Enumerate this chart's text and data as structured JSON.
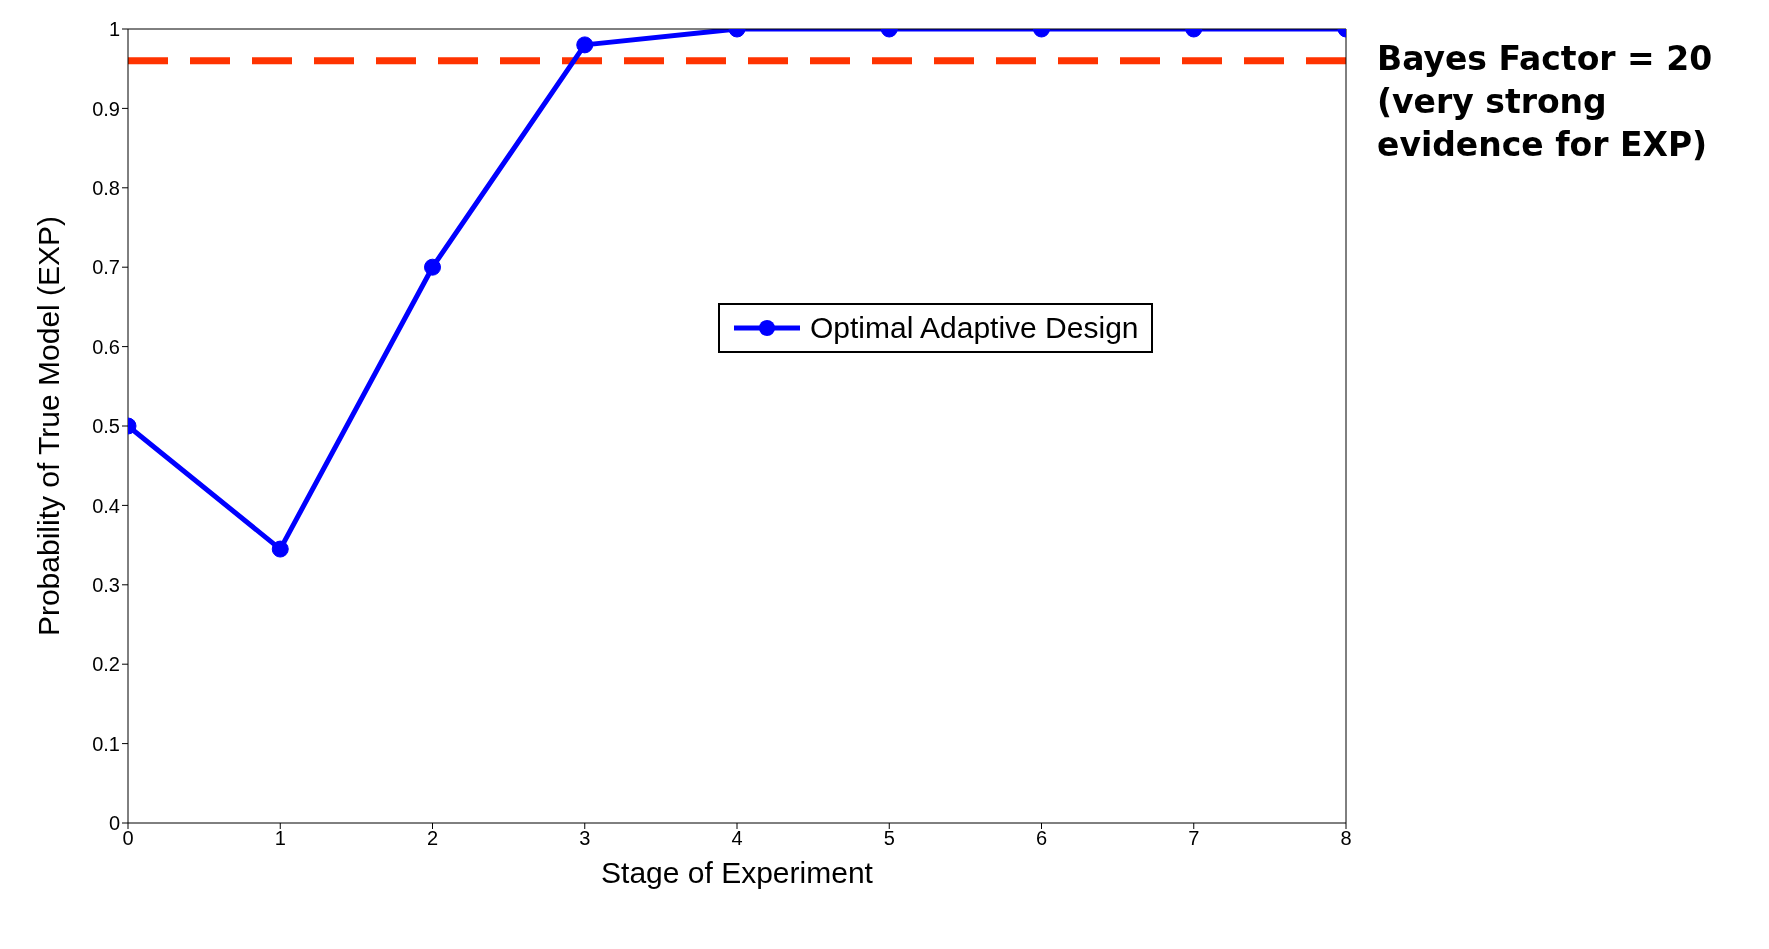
{
  "chart_data": {
    "type": "line",
    "xlabel": "Stage of Experiment",
    "ylabel": "Probability of True Model (EXP)",
    "x": [
      0,
      1,
      2,
      3,
      4,
      5,
      6,
      7,
      8
    ],
    "series": [
      {
        "name": "Optimal Adaptive Design",
        "color": "#0000ff",
        "values": [
          0.5,
          0.345,
          0.7,
          0.98,
          1,
          1,
          1,
          1,
          1
        ]
      }
    ],
    "xlim": [
      0,
      8
    ],
    "xticks": [
      0,
      1,
      2,
      3,
      4,
      5,
      6,
      7,
      8
    ],
    "ylim": [
      0,
      1
    ],
    "yticks": [
      0,
      0.1,
      0.2,
      0.3,
      0.4,
      0.5,
      0.6,
      0.7,
      0.8,
      0.9,
      1
    ],
    "ref_lines": [
      {
        "axis": "y",
        "value": 0.96,
        "color": "#ff3300",
        "line_style": "dashed"
      }
    ],
    "annotations": [
      "Bayes Factor = 20 (very strong evidence for EXP)"
    ],
    "marker": "circle",
    "line_style": "solid",
    "legend": "right",
    "grid": false
  }
}
